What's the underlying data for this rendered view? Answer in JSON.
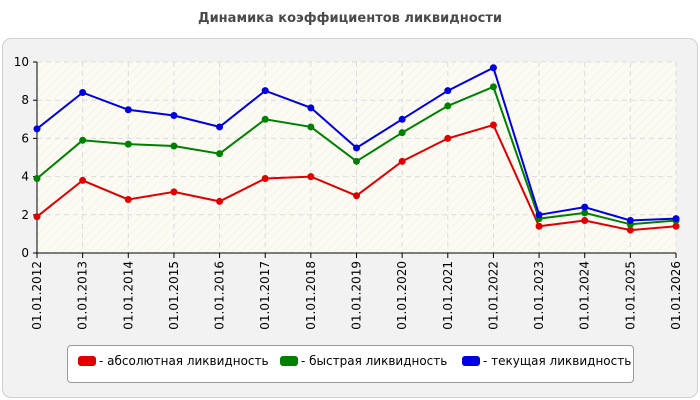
{
  "chart_data": {
    "type": "line",
    "title": "Динамика коэффициентов ликвидности",
    "categories": [
      "01.01.2012",
      "01.01.2013",
      "01.01.2014",
      "01.01.2015",
      "01.01.2016",
      "01.01.2017",
      "01.01.2018",
      "01.01.2019",
      "01.01.2020",
      "01.01.2021",
      "01.01.2022",
      "01.01.2023",
      "01.01.2024",
      "01.01.2025",
      "01.01.2026"
    ],
    "ylim": [
      0,
      10
    ],
    "yticks": [
      "0",
      "2",
      "4",
      "6",
      "8",
      "10"
    ],
    "grid": true,
    "legend_position": "bottom",
    "series": [
      {
        "name": "- абсолютная ликвидность",
        "color": "#e00000",
        "values": [
          1.9,
          3.8,
          2.8,
          3.2,
          2.7,
          3.9,
          4.0,
          3.0,
          4.8,
          6.0,
          6.7,
          1.4,
          1.7,
          1.2,
          1.4
        ]
      },
      {
        "name": "- быстрая ликвидность",
        "color": "#008000",
        "values": [
          3.9,
          5.9,
          5.7,
          5.6,
          5.2,
          7.0,
          6.6,
          4.8,
          6.3,
          7.7,
          8.7,
          1.8,
          2.1,
          1.5,
          1.7
        ]
      },
      {
        "name": "- текущая ликвидность",
        "color": "#0000e0",
        "values": [
          6.5,
          8.4,
          7.5,
          7.2,
          6.6,
          8.5,
          7.6,
          5.5,
          7.0,
          8.5,
          9.7,
          2.0,
          2.4,
          1.7,
          1.8
        ]
      }
    ]
  }
}
